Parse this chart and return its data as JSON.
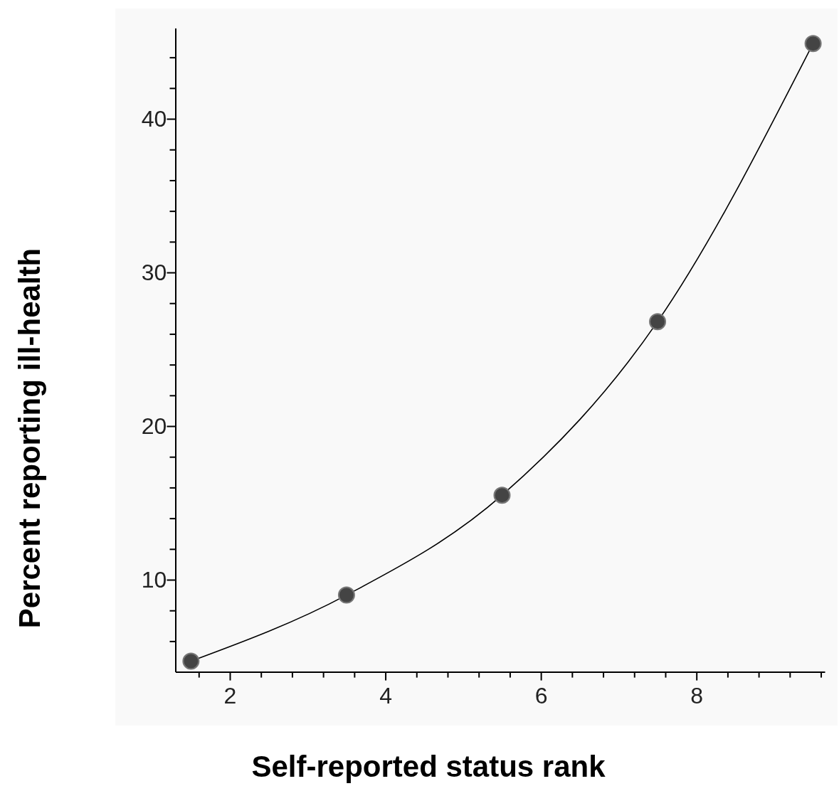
{
  "chart_data": {
    "type": "line",
    "xlabel": "Self-reported status rank",
    "ylabel": "Percent reporting ill-health",
    "x": [
      1.5,
      3.5,
      5.5,
      7.5,
      9.5
    ],
    "series": [
      {
        "color": "#000000",
        "values": [
          4.7,
          9.0,
          15.5,
          26.8,
          44.9
        ]
      }
    ],
    "marker": "circle",
    "line_style": "solid",
    "grid": false,
    "xlim": [
      1.3,
      9.65
    ],
    "xticks": [
      {
        "value": 1.6,
        "label": null
      },
      2,
      {
        "value": 2.4,
        "label": null
      },
      {
        "value": 2.8,
        "label": null
      },
      {
        "value": 3.2,
        "label": null
      },
      {
        "value": 3.6,
        "label": null
      },
      4,
      {
        "value": 4.4,
        "label": null
      },
      {
        "value": 4.8,
        "label": null
      },
      {
        "value": 5.2,
        "label": null
      },
      {
        "value": 5.6,
        "label": null
      },
      6,
      {
        "value": 6.4,
        "label": null
      },
      {
        "value": 6.8,
        "label": null
      },
      {
        "value": 7.2,
        "label": null
      },
      {
        "value": 7.6,
        "label": null
      },
      8,
      {
        "value": 8.4,
        "label": null
      },
      {
        "value": 8.8,
        "label": null
      },
      {
        "value": 9.2,
        "label": null
      },
      {
        "value": 9.6,
        "label": null
      }
    ],
    "ylim": [
      4,
      45.9
    ],
    "yticks": [
      {
        "value": 6,
        "label": null
      },
      {
        "value": 8,
        "label": null
      },
      10,
      {
        "value": 12,
        "label": null
      },
      {
        "value": 14,
        "label": null
      },
      {
        "value": 16,
        "label": null
      },
      {
        "value": 18,
        "label": null
      },
      20,
      {
        "value": 22,
        "label": null
      },
      {
        "value": 24,
        "label": null
      },
      {
        "value": 26,
        "label": null
      },
      {
        "value": 28,
        "label": null
      },
      30,
      {
        "value": 32,
        "label": null
      },
      {
        "value": 34,
        "label": null
      },
      {
        "value": 36,
        "label": null
      },
      {
        "value": 38,
        "label": null
      },
      40,
      {
        "value": 42,
        "label": null
      },
      {
        "value": 44,
        "label": null
      }
    ]
  }
}
